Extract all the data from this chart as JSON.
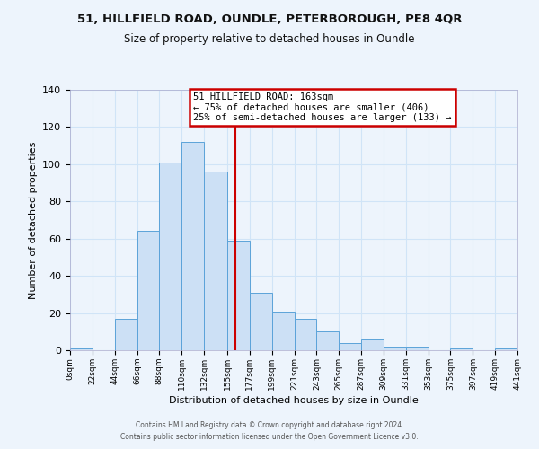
{
  "title_line1": "51, HILLFIELD ROAD, OUNDLE, PETERBOROUGH, PE8 4QR",
  "title_line2": "Size of property relative to detached houses in Oundle",
  "xlabel": "Distribution of detached houses by size in Oundle",
  "ylabel": "Number of detached properties",
  "bin_edges": [
    0,
    22,
    44,
    66,
    88,
    110,
    132,
    155,
    177,
    199,
    221,
    243,
    265,
    287,
    309,
    331,
    353,
    375,
    397,
    419,
    441
  ],
  "bar_heights": [
    1,
    0,
    17,
    64,
    101,
    112,
    96,
    59,
    31,
    21,
    17,
    10,
    4,
    6,
    2,
    2,
    0,
    1,
    0,
    1
  ],
  "bar_facecolor": "#cce0f5",
  "bar_edgecolor": "#5ba3d9",
  "vline_x": 163,
  "vline_color": "#cc0000",
  "ylim": [
    0,
    140
  ],
  "yticks": [
    0,
    20,
    40,
    60,
    80,
    100,
    120,
    140
  ],
  "grid_color": "#d0e4f7",
  "bg_color": "#edf4fc",
  "annotation_title": "51 HILLFIELD ROAD: 163sqm",
  "annotation_line1": "← 75% of detached houses are smaller (406)",
  "annotation_line2": "25% of semi-detached houses are larger (133) →",
  "annotation_box_edgecolor": "#cc0000",
  "footer_line1": "Contains HM Land Registry data © Crown copyright and database right 2024.",
  "footer_line2": "Contains public sector information licensed under the Open Government Licence v3.0."
}
